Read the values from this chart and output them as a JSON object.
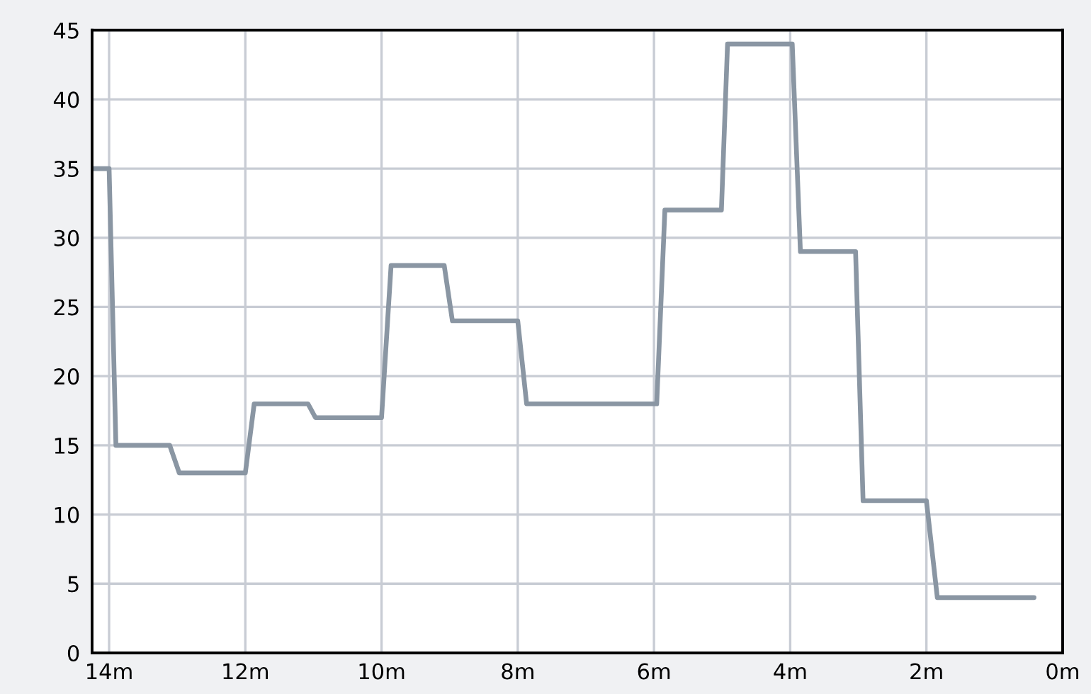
{
  "chart_data": {
    "type": "line",
    "x": [
      14.25,
      14.0,
      13.9,
      13.11,
      12.97,
      12.0,
      11.87,
      11.08,
      10.97,
      10.0,
      9.86,
      9.08,
      8.96,
      8.0,
      7.87,
      5.96,
      5.84,
      5.01,
      4.92,
      3.97,
      3.85,
      3.04,
      2.93,
      2.0,
      1.84,
      0.42
    ],
    "series": [
      {
        "color": "#8a96a3",
        "values": [
          35,
          35,
          15,
          15,
          13,
          13,
          18,
          18,
          17,
          17,
          28,
          28,
          24,
          24,
          18,
          18,
          32,
          32,
          44,
          44,
          29,
          29,
          11,
          11,
          4,
          4
        ]
      }
    ],
    "xlim": [
      14.25,
      0
    ],
    "ylim": [
      0,
      45
    ],
    "xticks": [
      {
        "value": 14,
        "label": "14m"
      },
      {
        "value": 12,
        "label": "12m"
      },
      {
        "value": 10,
        "label": "10m"
      },
      {
        "value": 8,
        "label": "8m"
      },
      {
        "value": 6,
        "label": "6m"
      },
      {
        "value": 4,
        "label": "4m"
      },
      {
        "value": 2,
        "label": "2m"
      },
      {
        "value": 0,
        "label": "0m"
      }
    ],
    "yticks": [
      0,
      5,
      10,
      15,
      20,
      25,
      30,
      35,
      40,
      45
    ],
    "grid": true,
    "marker": "none",
    "line_style": "solid"
  }
}
